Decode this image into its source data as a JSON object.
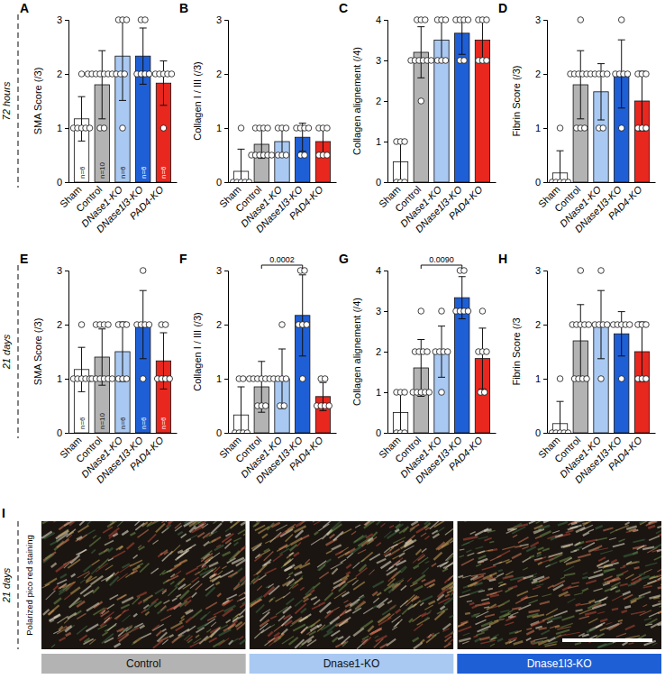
{
  "row_labels": [
    "72 hours",
    "21 days"
  ],
  "chart_data": [
    {
      "type": "bar",
      "title": "A",
      "ylabel": "SMA Score (/3)",
      "categories": [
        "Sham",
        "Control",
        "DNase1-KO",
        "DNase1l3-KO",
        "PAD4-KO"
      ],
      "values": [
        1.17,
        1.8,
        2.33,
        2.33,
        1.83
      ],
      "errors": [
        0.41,
        0.63,
        0.82,
        0.52,
        0.41
      ],
      "points": [
        [
          1,
          1,
          1,
          1,
          1,
          2
        ],
        [
          1,
          1,
          2,
          2,
          2,
          2,
          2,
          2,
          2,
          2
        ],
        [
          1,
          2,
          2,
          3,
          3,
          3
        ],
        [
          2,
          2,
          2,
          2,
          3,
          3
        ],
        [
          1,
          2,
          2,
          2,
          2,
          2
        ]
      ],
      "n_labels": [
        "n=6",
        "n=10",
        "n=6",
        "n=6",
        "n=6"
      ],
      "colors": [
        "#ffffff",
        "#b3b3b3",
        "#a9c9f2",
        "#1f5fd6",
        "#e8271f"
      ],
      "ylim": [
        0,
        3
      ],
      "yticks": [
        0,
        1,
        2,
        3
      ]
    },
    {
      "type": "bar",
      "title": "B",
      "ylabel": "Collagen I / III (/3)",
      "categories": [
        "Sham",
        "Control",
        "DNase1-KO",
        "DNase1l3-KO",
        "PAD4-KO"
      ],
      "values": [
        0.2,
        0.7,
        0.75,
        0.83,
        0.75
      ],
      "errors": [
        0.41,
        0.26,
        0.27,
        0.26,
        0.27
      ],
      "points": [
        [
          0,
          0,
          0,
          0,
          0,
          1
        ],
        [
          0.5,
          0.5,
          0.5,
          0.5,
          0.5,
          0.5,
          1,
          1,
          1,
          1
        ],
        [
          0.5,
          0.5,
          0.5,
          1,
          1,
          1
        ],
        [
          0.5,
          0.5,
          1,
          1,
          1,
          1
        ],
        [
          0.5,
          0.5,
          0.5,
          1,
          1,
          1
        ]
      ],
      "colors": [
        "#ffffff",
        "#b3b3b3",
        "#a9c9f2",
        "#1f5fd6",
        "#e8271f"
      ],
      "ylim": [
        0,
        3
      ],
      "yticks": [
        0,
        1,
        2,
        3
      ]
    },
    {
      "type": "bar",
      "title": "C",
      "ylabel": "Collagen alignement (/4)",
      "categories": [
        "Sham",
        "Control",
        "DNase1-KO",
        "DNase1l3-KO",
        "PAD4-KO"
      ],
      "values": [
        0.5,
        3.2,
        3.5,
        3.67,
        3.5
      ],
      "errors": [
        0.55,
        0.63,
        0.55,
        0.52,
        0.55
      ],
      "points": [
        [
          0,
          0,
          0,
          1,
          1,
          1
        ],
        [
          2,
          3,
          3,
          3,
          3,
          3,
          3,
          4,
          4,
          4
        ],
        [
          3,
          3,
          3,
          4,
          4,
          4
        ],
        [
          3,
          3,
          4,
          4,
          4,
          4
        ],
        [
          3,
          3,
          3,
          4,
          4,
          4
        ]
      ],
      "colors": [
        "#ffffff",
        "#b3b3b3",
        "#a9c9f2",
        "#1f5fd6",
        "#e8271f"
      ],
      "ylim": [
        0,
        4
      ],
      "yticks": [
        0,
        1,
        2,
        3,
        4
      ]
    },
    {
      "type": "bar",
      "title": "D",
      "ylabel": "Fibrin Score (/3)",
      "categories": [
        "Sham",
        "Control",
        "DNase1-KO",
        "DNase1l3-KO",
        "PAD4-KO"
      ],
      "values": [
        0.17,
        1.8,
        1.67,
        2.0,
        1.5
      ],
      "errors": [
        0.41,
        0.63,
        0.52,
        0.63,
        0.55
      ],
      "points": [
        [
          0,
          0,
          0,
          0,
          0,
          1
        ],
        [
          1,
          1,
          1,
          2,
          2,
          2,
          2,
          2,
          2,
          3
        ],
        [
          1,
          1,
          2,
          2,
          2,
          2
        ],
        [
          1,
          2,
          2,
          2,
          2,
          3
        ],
        [
          1,
          1,
          1,
          2,
          2,
          2
        ]
      ],
      "colors": [
        "#ffffff",
        "#b3b3b3",
        "#a9c9f2",
        "#1f5fd6",
        "#e8271f"
      ],
      "ylim": [
        0,
        3
      ],
      "yticks": [
        0,
        1,
        2,
        3
      ]
    },
    {
      "type": "bar",
      "title": "E",
      "ylabel": "SMA Score (/3)",
      "categories": [
        "Sham",
        "Control",
        "DNase1-KO",
        "DNase1l3-KO",
        "PAD4-KO"
      ],
      "values": [
        1.17,
        1.4,
        1.5,
        2.0,
        1.33
      ],
      "errors": [
        0.41,
        0.52,
        0.55,
        0.63,
        0.52
      ],
      "points": [
        [
          1,
          1,
          1,
          1,
          1,
          2
        ],
        [
          1,
          1,
          1,
          1,
          1,
          1,
          2,
          2,
          2,
          2
        ],
        [
          1,
          1,
          1,
          2,
          2,
          2
        ],
        [
          1,
          2,
          2,
          2,
          2,
          3
        ],
        [
          1,
          1,
          1,
          1,
          2,
          2
        ]
      ],
      "n_labels": [
        "n=6",
        "n=10",
        "n=6",
        "n=6",
        "n=6"
      ],
      "colors": [
        "#ffffff",
        "#b3b3b3",
        "#a9c9f2",
        "#1f5fd6",
        "#e8271f"
      ],
      "ylim": [
        0,
        3
      ],
      "yticks": [
        0,
        1,
        2,
        3
      ]
    },
    {
      "type": "bar",
      "title": "F",
      "ylabel": "Collagen I / III (/3)",
      "categories": [
        "Sham",
        "Control",
        "DNase1-KO",
        "DNase1l3-KO",
        "PAD4-KO"
      ],
      "values": [
        0.33,
        0.85,
        1.0,
        2.17,
        0.67
      ],
      "errors": [
        0.52,
        0.47,
        0.55,
        0.75,
        0.26
      ],
      "points": [
        [
          0,
          0,
          0,
          0,
          1,
          1
        ],
        [
          0.5,
          0.5,
          0.5,
          1,
          1,
          1,
          1,
          1,
          1,
          1
        ],
        [
          0.5,
          0.5,
          1,
          1,
          1,
          2
        ],
        [
          1,
          2,
          2,
          2,
          3,
          3
        ],
        [
          0.5,
          0.5,
          0.5,
          0.5,
          1,
          1
        ]
      ],
      "comparisons": [
        {
          "groups": [
            "Control",
            "DNase1l3-KO"
          ],
          "label": "0.0002"
        }
      ],
      "colors": [
        "#ffffff",
        "#b3b3b3",
        "#a9c9f2",
        "#1f5fd6",
        "#e8271f"
      ],
      "ylim": [
        0,
        3
      ],
      "yticks": [
        0,
        1,
        2,
        3
      ]
    },
    {
      "type": "bar",
      "title": "G",
      "ylabel": "Collagen alignement (/4)",
      "categories": [
        "Sham",
        "Control",
        "DNase1-KO",
        "DNase1l3-KO",
        "PAD4-KO"
      ],
      "values": [
        0.5,
        1.6,
        2.0,
        3.33,
        1.83
      ],
      "errors": [
        0.55,
        0.7,
        0.63,
        0.52,
        0.75
      ],
      "points": [
        [
          0,
          0,
          0,
          1,
          1,
          1
        ],
        [
          1,
          1,
          1,
          1,
          1,
          2,
          2,
          2,
          2,
          3
        ],
        [
          1,
          2,
          2,
          2,
          2,
          3
        ],
        [
          3,
          3,
          3,
          3,
          4,
          4
        ],
        [
          1,
          1,
          2,
          2,
          2,
          3
        ]
      ],
      "comparisons": [
        {
          "groups": [
            "Control",
            "DNase1l3-KO"
          ],
          "label": "0.0090"
        }
      ],
      "colors": [
        "#ffffff",
        "#b3b3b3",
        "#a9c9f2",
        "#1f5fd6",
        "#e8271f"
      ],
      "ylim": [
        0,
        4
      ],
      "yticks": [
        0,
        1,
        2,
        3,
        4
      ]
    },
    {
      "type": "bar",
      "title": "H",
      "ylabel": "Fibrin Score (/3",
      "categories": [
        "Sham",
        "Control",
        "DNase1-KO",
        "DNase1l3-KO",
        "PAD4-KO"
      ],
      "values": [
        0.17,
        1.7,
        2.0,
        1.83,
        1.5
      ],
      "errors": [
        0.41,
        0.67,
        0.63,
        0.41,
        0.55
      ],
      "points": [
        [
          0,
          0,
          0,
          0,
          0,
          1
        ],
        [
          1,
          1,
          1,
          1,
          2,
          2,
          2,
          2,
          2,
          3
        ],
        [
          1,
          2,
          2,
          2,
          2,
          3
        ],
        [
          1,
          2,
          2,
          2,
          2,
          2
        ],
        [
          1,
          1,
          1,
          2,
          2,
          2
        ]
      ],
      "colors": [
        "#ffffff",
        "#b3b3b3",
        "#a9c9f2",
        "#1f5fd6",
        "#e8271f"
      ],
      "ylim": [
        0,
        3
      ],
      "yticks": [
        0,
        1,
        2,
        3
      ]
    }
  ],
  "panel_i": {
    "title": "I",
    "time_label": "21 days",
    "stain_label": "Polarized pico red staining",
    "groups": [
      {
        "name": "Control",
        "color": "#b3b3b3"
      },
      {
        "name": "Dnase1-KO",
        "color": "#a9c9f2"
      },
      {
        "name": "Dnase1l3-KO",
        "color": "#1f5fd6"
      }
    ]
  }
}
